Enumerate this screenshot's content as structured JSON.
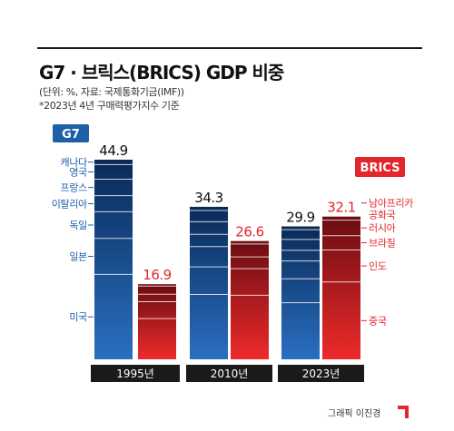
{
  "title": "G7 · 브릭스(BRICS) GDP 비중",
  "note1": "(단위: %, 자료: 국제통화기금(IMF))",
  "note2": "*2023년 4년 구매력평가지수 기준",
  "credit": "그래픽 이진경",
  "colors": {
    "g7_top": "#0a2a57",
    "g7_bottom": "#2a6fc2",
    "brics_top": "#6a0d12",
    "brics_bottom": "#ee2a2a",
    "g7_badge": "#1f5fa8",
    "brics_badge": "#e2262b",
    "g7_label": "#1f5fa8",
    "brics_label": "#e2262b",
    "year_box": "#1a1a1a"
  },
  "chart_data": {
    "type": "bar",
    "categories": [
      "1995년",
      "2010년",
      "2023년"
    ],
    "series": [
      {
        "name": "G7",
        "values": [
          44.9,
          34.3,
          29.9
        ]
      },
      {
        "name": "BRICS",
        "values": [
          16.9,
          26.6,
          32.1
        ]
      }
    ],
    "value_labels": {
      "G7": [
        "44.9",
        "34.3",
        "29.9"
      ],
      "BRICS": [
        "16.9",
        "26.6",
        "32.1"
      ]
    },
    "g7_members": [
      "캐나다",
      "영국",
      "프랑스",
      "이탈리아",
      "독일",
      "일본",
      "미국"
    ],
    "g7_member_levels": [
      43.8,
      40.5,
      36.8,
      33.2,
      27.2,
      19.1,
      0
    ],
    "brics_members": [
      "남아프리카\n공화국",
      "러시아",
      "브라질",
      "인도",
      "중국"
    ],
    "brics_member_levels": [
      31.3,
      27.8,
      24.6,
      17.4,
      0
    ],
    "title": "",
    "xlabel": "",
    "ylabel": "",
    "ylim": [
      0,
      48
    ],
    "grid": false,
    "legend": "top"
  }
}
